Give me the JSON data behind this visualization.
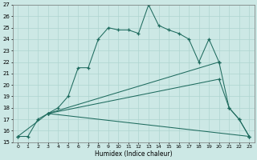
{
  "xlabel": "Humidex (Indice chaleur)",
  "xlim": [
    -0.5,
    23.5
  ],
  "ylim": [
    15,
    27
  ],
  "xticks": [
    0,
    1,
    2,
    3,
    4,
    5,
    6,
    7,
    8,
    9,
    10,
    11,
    12,
    13,
    14,
    15,
    16,
    17,
    18,
    19,
    20,
    21,
    22,
    23
  ],
  "yticks": [
    15,
    16,
    17,
    18,
    19,
    20,
    21,
    22,
    23,
    24,
    25,
    26,
    27
  ],
  "background_color": "#cce8e5",
  "grid_color": "#afd4d0",
  "line_color": "#1e6b5e",
  "line1_x": [
    0,
    1,
    2,
    3,
    4,
    5,
    6,
    7,
    8,
    9,
    10,
    11,
    12,
    13,
    14,
    15,
    16,
    17,
    18,
    19,
    20,
    21,
    22,
    23
  ],
  "line1_y": [
    15.5,
    15.5,
    17.0,
    17.5,
    18.0,
    19.0,
    21.5,
    21.5,
    24.0,
    25.0,
    24.8,
    24.8,
    24.5,
    27.0,
    25.2,
    24.8,
    24.5,
    24.0,
    22.0,
    24.0,
    22.0,
    18.0,
    17.0,
    15.5
  ],
  "line2_x": [
    3,
    20
  ],
  "line2_y": [
    17.5,
    22.0
  ],
  "line3_x": [
    3,
    20,
    21,
    22,
    23
  ],
  "line3_y": [
    17.5,
    20.5,
    18.0,
    17.0,
    15.5
  ],
  "line4_x": [
    0,
    3,
    23
  ],
  "line4_y": [
    15.5,
    17.5,
    15.5
  ]
}
